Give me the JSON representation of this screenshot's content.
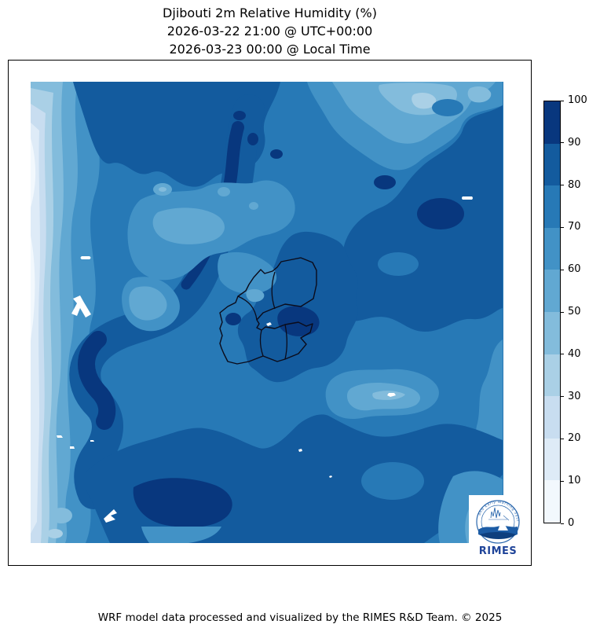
{
  "title": {
    "line1": "Djibouti 2m Relative Humidity (%)",
    "line2": "2026-03-22 21:00 @ UTC+00:00",
    "line3": "2026-03-23 00:00 @ Local Time"
  },
  "footer": {
    "credit": "WRF model data processed and visualized by the RIMES R&D Team. © 2025"
  },
  "logo": {
    "name": "RIMES",
    "arc_text_visible": "and Early Warning Syst",
    "text_color": "#1f4499",
    "ring_color": "#2a67ad",
    "wave_dark": "#0e3f7e",
    "wave_mid": "#1c5ca5"
  },
  "chart_data": {
    "type": "heatmap",
    "subtype": "filled-contour-map",
    "title": "Djibouti 2m Relative Humidity (%)",
    "variable": "2m Relative Humidity",
    "units": "%",
    "region": "Djibouti and surroundings",
    "valid_time_utc": "2026-03-22 21:00 UTC+00:00",
    "valid_time_local": "2026-03-23 00:00 Local Time",
    "levels": [
      0,
      10,
      20,
      30,
      40,
      50,
      60,
      70,
      80,
      90,
      100
    ],
    "colorbar": {
      "orientation": "vertical",
      "min": 0,
      "max": 100,
      "ticks": [
        0,
        10,
        20,
        30,
        40,
        50,
        60,
        70,
        80,
        90,
        100
      ]
    },
    "palette": {
      "b0": "#f2f8fd",
      "b10": "#deebf7",
      "b20": "#c8ddf0",
      "b30": "#aad0e6",
      "b40": "#83bcdc",
      "b50": "#61a8d2",
      "b60": "#4292c6",
      "b70": "#2779b6",
      "b80": "#135b9e",
      "b90": "#08377e",
      "mask": "#ffffff",
      "outline": "#0b0b1a"
    },
    "field_summary": [
      "Very dry band (RH 0-30%) along the western map edge",
      "Humid ridge (RH 80-100%) snaking from top-center to bottom-left",
      "Large humid mass (RH 80-90%) upper-right and east of Djibouti, incl. Gulf of Tadjoura",
      "Highest values (90-100%) near Djibouti city coast and along the ridge cores",
      "Drier pockets (40-60%) in map center, top-center and a streak right-of-center",
      "Broad humid band (80-90%) across the bottom third",
      "Small white masked spots (lakes/out-of-range) scattered on the left side"
    ]
  }
}
